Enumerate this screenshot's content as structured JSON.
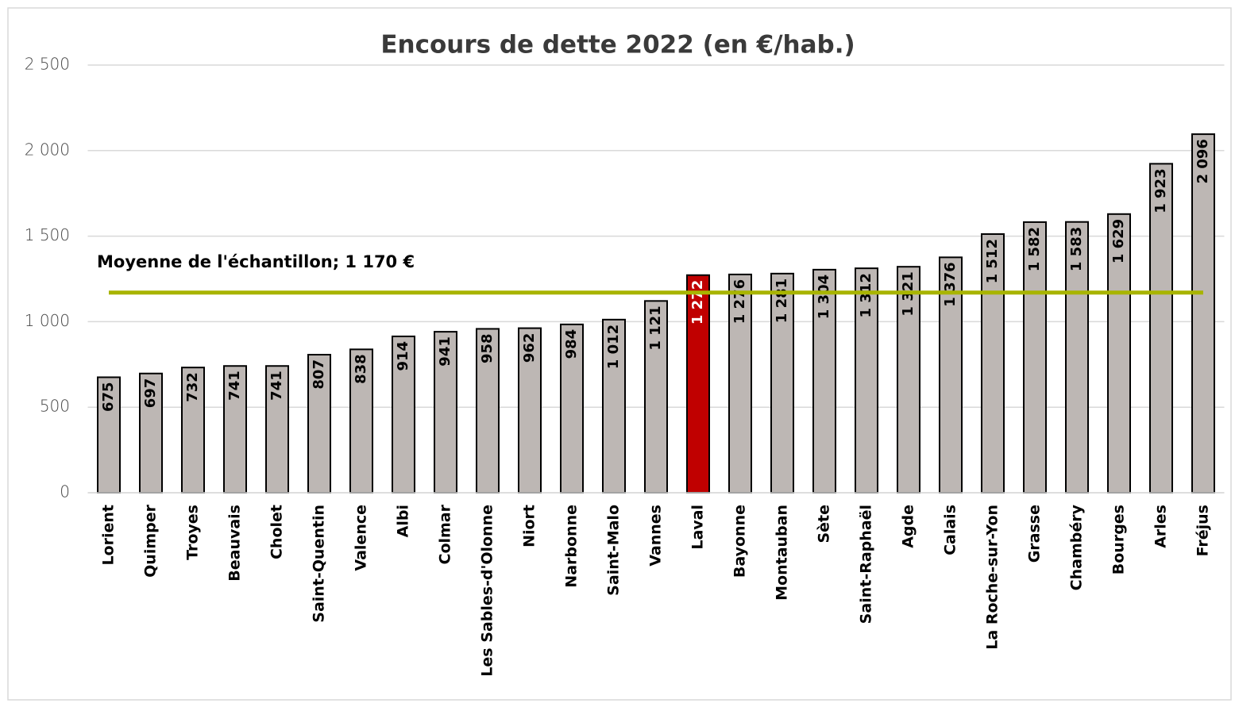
{
  "chart_data": {
    "type": "bar",
    "title": "Encours de dette 2022 (en €/hab.)",
    "categories": [
      "Lorient",
      "Quimper",
      "Troyes",
      "Beauvais",
      "Cholet",
      "Saint-Quentin",
      "Valence",
      "Albi",
      "Colmar",
      "Les Sables-d'Olonne",
      "Niort",
      "Narbonne",
      "Saint-Malo",
      "Vannes",
      "Laval",
      "Bayonne",
      "Montauban",
      "Sète",
      "Saint-Raphaël",
      "Agde",
      "Calais",
      "La Roche-sur-Yon",
      "Grasse",
      "Chambéry",
      "Bourges",
      "Arles",
      "Fréjus"
    ],
    "values": [
      675,
      697,
      732,
      741,
      741,
      807,
      838,
      914,
      941,
      958,
      962,
      984,
      1012,
      1121,
      1272,
      1276,
      1281,
      1304,
      1312,
      1321,
      1376,
      1512,
      1582,
      1583,
      1629,
      1923,
      2096
    ],
    "value_labels": [
      "675",
      "697",
      "732",
      "741",
      "741",
      "807",
      "838",
      "914",
      "941",
      "958",
      "962",
      "984",
      "1 012",
      "1 121",
      "1 272",
      "1 276",
      "1 281",
      "1 304",
      "1 312",
      "1 321",
      "1 376",
      "1 512",
      "1 582",
      "1 583",
      "1 629",
      "1 923",
      "2 096"
    ],
    "colors": [
      "#bdb7b4",
      "#bdb7b4",
      "#bdb7b4",
      "#bdb7b4",
      "#bdb7b4",
      "#bdb7b4",
      "#bdb7b4",
      "#bdb7b4",
      "#bdb7b4",
      "#bdb7b4",
      "#bdb7b4",
      "#bdb7b4",
      "#bdb7b4",
      "#bdb7b4",
      "#c00000",
      "#bdb7b4",
      "#bdb7b4",
      "#bdb7b4",
      "#bdb7b4",
      "#bdb7b4",
      "#bdb7b4",
      "#bdb7b4",
      "#bdb7b4",
      "#bdb7b4",
      "#bdb7b4",
      "#bdb7b4",
      "#bdb7b4"
    ],
    "ylim": [
      0,
      2500
    ],
    "yticks": [
      0,
      500,
      {
        "value": 1000,
        "label": "1 000"
      },
      {
        "value": 1500,
        "label": "1 500"
      },
      {
        "value": 2000,
        "label": "2 000"
      },
      {
        "value": 2500,
        "label": "2 500"
      }
    ],
    "grid": true,
    "reference_line": {
      "value": 1170,
      "label": "Moyenne de l'échantillon; 1 170 €",
      "color": "#a8b400"
    }
  }
}
